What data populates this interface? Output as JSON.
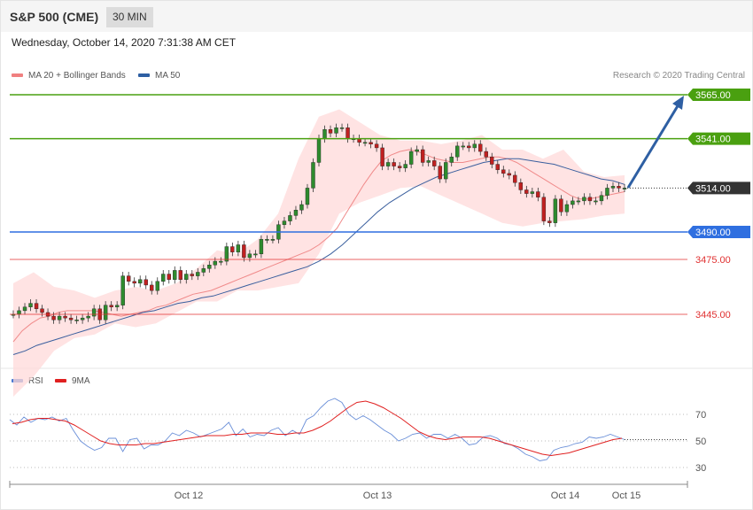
{
  "header": {
    "title": "S&P 500 (CME)",
    "timeframe": "30 MIN",
    "datetime": "Wednesday, October 14, 2020 7:31:38 AM CET",
    "credit": "Research © 2020 Trading Central"
  },
  "legend_main": [
    {
      "label": "MA 20 + Bollinger Bands",
      "color": "#f08080"
    },
    {
      "label": "MA 50",
      "color": "#2e5fa3"
    }
  ],
  "legend_rsi": [
    {
      "label": "RSI",
      "color": "#4a78d0"
    },
    {
      "label": "9MA",
      "color": "#e02020"
    }
  ],
  "chart_data": [
    {
      "type": "candlestick",
      "title": "S&P 500 (CME) 30 MIN",
      "x_ticks": [
        "Oct 12",
        "Oct 13",
        "Oct 14",
        "Oct 15"
      ],
      "current_price": "3514.00",
      "levels": [
        {
          "label": "3565.00",
          "value": 3565,
          "kind": "target",
          "color": "#4aa010"
        },
        {
          "label": "3541.00",
          "value": 3541,
          "kind": "target",
          "color": "#4aa010"
        },
        {
          "label": "3514.00",
          "value": 3514,
          "kind": "last",
          "color": "#333333"
        },
        {
          "label": "3490.00",
          "value": 3490,
          "kind": "pivot",
          "color": "#2f6fe0"
        },
        {
          "label": "3475.00",
          "value": 3475,
          "kind": "support",
          "color": "#e03030"
        },
        {
          "label": "3445.00",
          "value": 3445,
          "kind": "support",
          "color": "#e03030"
        }
      ],
      "close_series": [
        3445,
        3447,
        3449,
        3451,
        3448,
        3446,
        3444,
        3442,
        3444,
        3443,
        3442,
        3442,
        3443,
        3444,
        3448,
        3442,
        3450,
        3449,
        3450,
        3466,
        3463,
        3462,
        3464,
        3461,
        3458,
        3463,
        3467,
        3464,
        3469,
        3464,
        3467,
        3466,
        3468,
        3470,
        3472,
        3474,
        3474,
        3482,
        3479,
        3483,
        3476,
        3478,
        3478,
        3486,
        3486,
        3486,
        3494,
        3496,
        3499,
        3502,
        3505,
        3514,
        3528,
        3541,
        3546,
        3544,
        3547,
        3547,
        3541,
        3541,
        3539,
        3539,
        3538,
        3536,
        3526,
        3528,
        3526,
        3525,
        3527,
        3534,
        3535,
        3528,
        3529,
        3526,
        3519,
        3528,
        3531,
        3537,
        3537,
        3536,
        3538,
        3534,
        3531,
        3527,
        3524,
        3522,
        3521,
        3517,
        3513,
        3511,
        3512,
        3509,
        3496,
        3495,
        3508,
        3501,
        3505,
        3507,
        3507,
        3509,
        3507,
        3507,
        3510,
        3514,
        3515,
        3514,
        3514
      ],
      "ma20_series": [
        3430,
        3436,
        3440,
        3443,
        3444,
        3446,
        3447,
        3447,
        3447,
        3447,
        3446,
        3445,
        3444,
        3445,
        3446,
        3447,
        3449,
        3450,
        3452,
        3454,
        3456,
        3457,
        3458,
        3460,
        3462,
        3464,
        3466,
        3468,
        3470,
        3472,
        3474,
        3476,
        3478,
        3480,
        3483,
        3487,
        3492,
        3500,
        3508,
        3516,
        3523,
        3529,
        3532,
        3534,
        3535,
        3534,
        3532,
        3530,
        3529,
        3528,
        3528,
        3529,
        3530,
        3531,
        3531,
        3530,
        3528,
        3525,
        3522,
        3519,
        3516,
        3513,
        3510,
        3508,
        3508,
        3509,
        3510,
        3511,
        3512
      ],
      "ma50_series": [
        3423,
        3425,
        3428,
        3430,
        3432,
        3434,
        3436,
        3438,
        3440,
        3442,
        3444,
        3446,
        3447,
        3449,
        3451,
        3452,
        3454,
        3455,
        3457,
        3459,
        3461,
        3463,
        3465,
        3467,
        3469,
        3471,
        3474,
        3478,
        3483,
        3489,
        3495,
        3501,
        3506,
        3510,
        3514,
        3517,
        3520,
        3522,
        3524,
        3526,
        3528,
        3529,
        3530,
        3530,
        3529,
        3528,
        3527,
        3525,
        3523,
        3521,
        3519,
        3518,
        3516
      ],
      "bb_upper": [
        3462,
        3468,
        3460,
        3458,
        3454,
        3458,
        3460,
        3458,
        3462,
        3470,
        3480,
        3478,
        3486,
        3500,
        3530,
        3553,
        3557,
        3550,
        3543,
        3540,
        3540,
        3538,
        3540,
        3543,
        3535,
        3535,
        3530,
        3535,
        3523,
        3520,
        3521
      ],
      "bb_lower": [
        3400,
        3411,
        3425,
        3432,
        3434,
        3440,
        3438,
        3440,
        3446,
        3452,
        3452,
        3458,
        3458,
        3460,
        3462,
        3478,
        3500,
        3506,
        3510,
        3514,
        3515,
        3510,
        3505,
        3500,
        3495,
        3493,
        3495,
        3496,
        3497,
        3499,
        3500
      ]
    },
    {
      "type": "line",
      "title": "RSI",
      "ylim": [
        20,
        80
      ],
      "y_ticks": [
        "70",
        "50",
        "30"
      ],
      "series": [
        {
          "name": "RSI",
          "values": [
            66,
            62,
            68,
            64,
            67,
            66,
            68,
            65,
            67,
            58,
            50,
            46,
            43,
            45,
            52,
            52,
            42,
            51,
            52,
            44,
            47,
            47,
            50,
            56,
            54,
            58,
            56,
            53,
            55,
            57,
            59,
            64,
            54,
            59,
            53,
            55,
            54,
            58,
            60,
            54,
            58,
            55,
            66,
            69,
            75,
            80,
            82,
            79,
            70,
            66,
            69,
            66,
            62,
            58,
            55,
            50,
            52,
            55,
            56,
            52,
            55,
            55,
            52,
            55,
            52,
            47,
            48,
            53,
            54,
            52,
            48,
            47,
            44,
            40,
            38,
            35,
            36,
            43,
            45,
            46,
            48,
            49,
            53,
            52,
            53,
            55,
            53,
            51
          ]
        },
        {
          "name": "9MA",
          "values": [
            63,
            64,
            66,
            67,
            67,
            66,
            65,
            62,
            58,
            54,
            50,
            48,
            47,
            47,
            47,
            48,
            48,
            49,
            50,
            51,
            52,
            53,
            54,
            54,
            54,
            55,
            55,
            56,
            56,
            56,
            55,
            55,
            56,
            56,
            58,
            61,
            65,
            70,
            75,
            79,
            80,
            78,
            75,
            71,
            67,
            62,
            57,
            54,
            52,
            51,
            52,
            53,
            53,
            53,
            52,
            50,
            48,
            46,
            44,
            42,
            40,
            39,
            40,
            41,
            43,
            45,
            47,
            49,
            51,
            52
          ]
        }
      ]
    }
  ]
}
